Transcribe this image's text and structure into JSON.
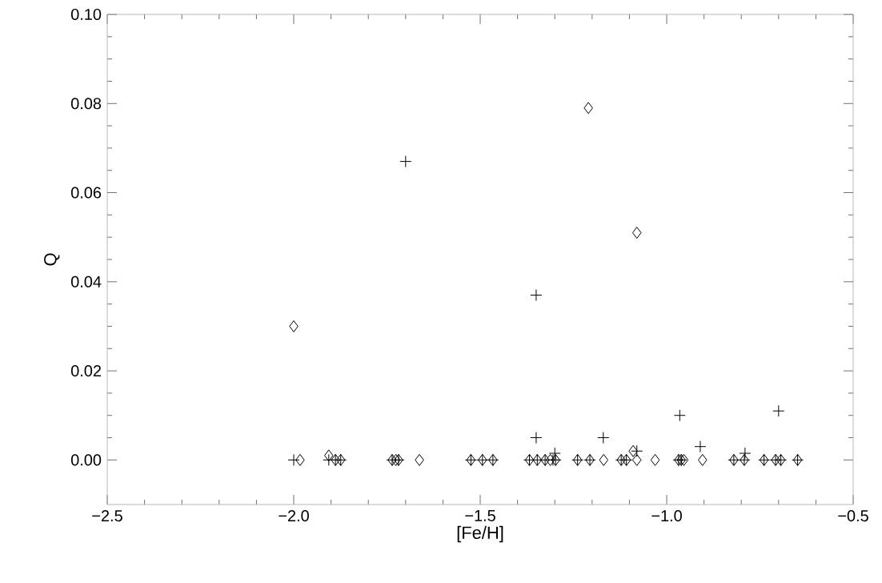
{
  "chart_data": {
    "type": "scatter",
    "xlabel": "[Fe/H]",
    "ylabel": "Q",
    "xlim": [
      -2.5,
      -0.5
    ],
    "ylim": [
      -0.01,
      0.1
    ],
    "xticks": [
      {
        "value": -2.5,
        "label": "−2.5"
      },
      {
        "value": -2.0,
        "label": "−2.0"
      },
      {
        "value": -1.5,
        "label": "−1.5"
      },
      {
        "value": -1.0,
        "label": "−1.0"
      },
      {
        "value": -0.5,
        "label": "−0.5"
      }
    ],
    "yticks": [
      {
        "value": 0,
        "label": "0.00"
      },
      {
        "value": 0.02,
        "label": "0.02"
      },
      {
        "value": 0.04,
        "label": "0.04"
      },
      {
        "value": 0.06,
        "label": "0.06"
      },
      {
        "value": 0.08,
        "label": "0.08"
      },
      {
        "value": 0.1,
        "label": "0.10"
      }
    ],
    "grid": false,
    "series": [
      {
        "color": "#000000",
        "marker": "cross",
        "x": [
          -1.7,
          -1.35,
          -1.35,
          -1.17,
          -0.965,
          -0.91,
          -0.7,
          -1.08,
          -1.3,
          -0.79,
          -2.0,
          -1.906,
          -1.888,
          -1.874,
          -1.736,
          -1.719,
          -1.525,
          -1.494,
          -1.466,
          -1.368,
          -1.347,
          -1.326,
          -1.305,
          -1.298,
          -1.239,
          -1.206,
          -1.122,
          -1.108,
          -0.968,
          -0.961,
          -0.82,
          -0.792,
          -0.739,
          -0.708,
          -0.694,
          -0.649
        ],
        "values": [
          0.067,
          0.037,
          0.005,
          0.005,
          0.01,
          0.003,
          0.011,
          0.002,
          0.0015,
          0.0015,
          0,
          0,
          0,
          0,
          0,
          0,
          0,
          0,
          0,
          0,
          0,
          0,
          0,
          0,
          0,
          0,
          0,
          0,
          0,
          0,
          0,
          0,
          0,
          0,
          0,
          0
        ]
      },
      {
        "color": "#000000",
        "marker": "diamond",
        "x": [
          -2.0,
          -1.21,
          -1.08,
          -1.09,
          -1.906,
          -1.983,
          -1.888,
          -1.874,
          -1.736,
          -1.726,
          -1.719,
          -1.663,
          -1.525,
          -1.494,
          -1.466,
          -1.368,
          -1.347,
          -1.326,
          -1.312,
          -1.298,
          -1.239,
          -1.206,
          -1.169,
          -1.122,
          -1.108,
          -1.08,
          -1.031,
          -0.968,
          -0.961,
          -0.954,
          -0.904,
          -0.82,
          -0.792,
          -0.739,
          -0.708,
          -0.694,
          -0.649
        ],
        "values": [
          0.03,
          0.079,
          0.051,
          0.002,
          0.001,
          0,
          0,
          0,
          0,
          0,
          0,
          0,
          0,
          0,
          0,
          0,
          0,
          0,
          0,
          0,
          0,
          0,
          0,
          0,
          0,
          0,
          0,
          0,
          0,
          0,
          0,
          0,
          0,
          0,
          0,
          0,
          0
        ]
      }
    ]
  }
}
